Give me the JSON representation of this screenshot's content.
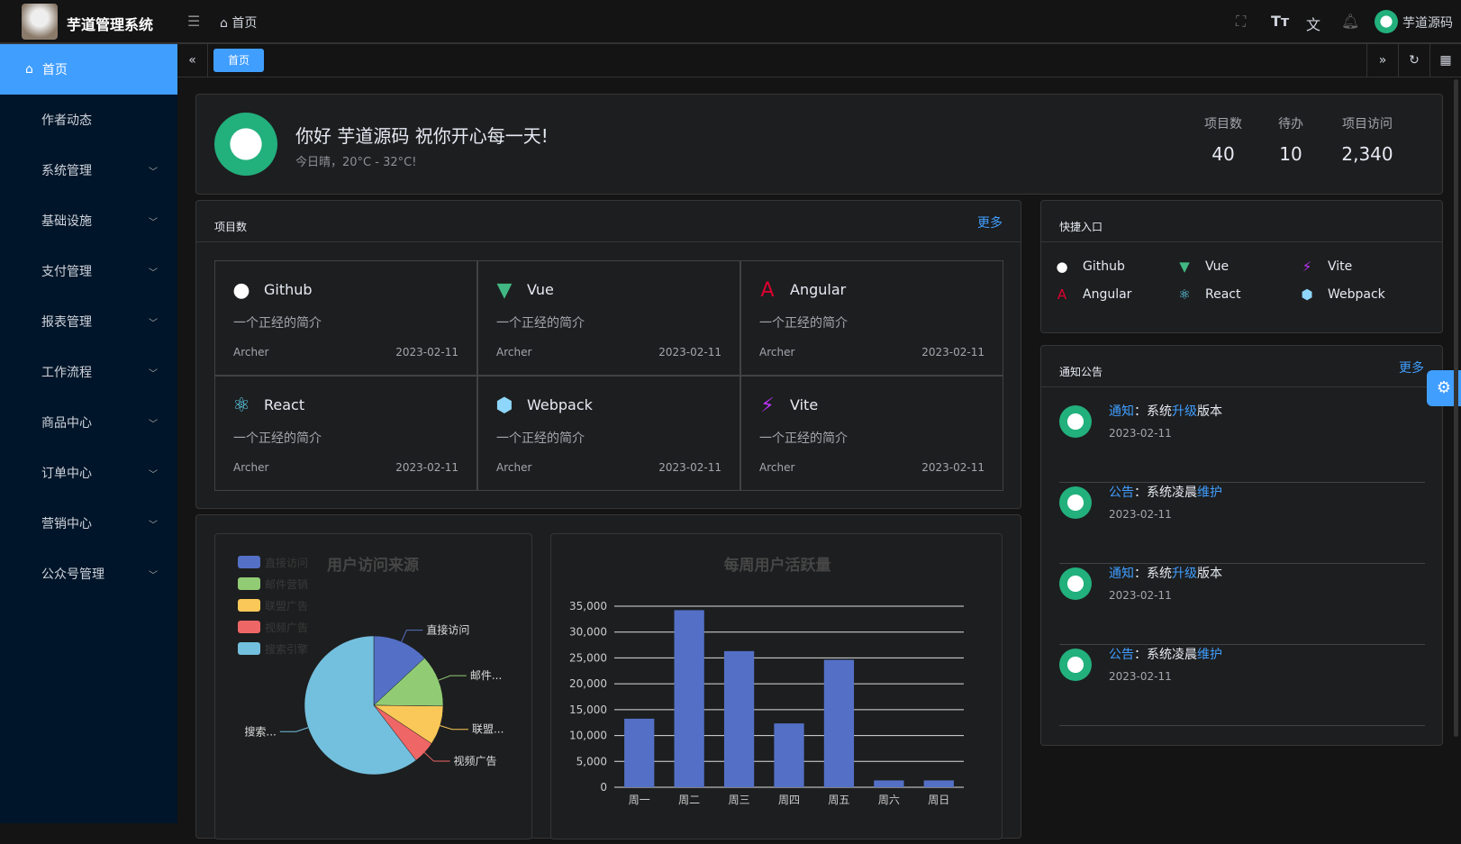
{
  "header": {
    "title": "芋道管理系统",
    "breadcrumb": "首页",
    "user": "芋道源码"
  },
  "tabs": [
    {
      "label": "首页"
    }
  ],
  "sidebar": {
    "items": [
      {
        "label": "首页",
        "icon": "home-icon"
      },
      {
        "label": "作者动态"
      },
      {
        "label": "系统管理"
      },
      {
        "label": "基础设施"
      },
      {
        "label": "支付管理"
      },
      {
        "label": "报表管理"
      },
      {
        "label": "工作流程"
      },
      {
        "label": "商品中心"
      },
      {
        "label": "订单中心"
      },
      {
        "label": "营销中心"
      },
      {
        "label": "公众号管理"
      }
    ]
  },
  "welcome": {
    "greeting": "你好 芋道源码 祝你开心每一天!",
    "weather": "今日晴，20°C - 32°C!",
    "stats": [
      {
        "label": "项目数",
        "value": "40"
      },
      {
        "label": "待办",
        "value": "10"
      },
      {
        "label": "项目访问",
        "value": "2,340"
      }
    ]
  },
  "projects": {
    "title": "项目数",
    "more": "更多",
    "items": [
      {
        "name": "Github",
        "icon": "github-icon",
        "color": "#ffffff",
        "desc": "一个正经的简介",
        "author": "Archer",
        "date": "2023-02-11"
      },
      {
        "name": "Vue",
        "icon": "vue-icon",
        "color": "#41b883",
        "desc": "一个正经的简介",
        "author": "Archer",
        "date": "2023-02-11"
      },
      {
        "name": "Angular",
        "icon": "angular-icon",
        "color": "#dd0031",
        "desc": "一个正经的简介",
        "author": "Archer",
        "date": "2023-02-11"
      },
      {
        "name": "React",
        "icon": "react-icon",
        "color": "#61dafb",
        "desc": "一个正经的简介",
        "author": "Archer",
        "date": "2023-02-11"
      },
      {
        "name": "Webpack",
        "icon": "webpack-icon",
        "color": "#8ed6fb",
        "desc": "一个正经的简介",
        "author": "Archer",
        "date": "2023-02-11"
      },
      {
        "name": "Vite",
        "icon": "vite-icon",
        "color": "#bd34fe",
        "desc": "一个正经的简介",
        "author": "Archer",
        "date": "2023-02-11"
      }
    ]
  },
  "quick": {
    "title": "快捷入口",
    "items": [
      {
        "name": "Github",
        "icon": "github-icon",
        "color": "#ffffff"
      },
      {
        "name": "Vue",
        "icon": "vue-icon",
        "color": "#41b883"
      },
      {
        "name": "Vite",
        "icon": "vite-icon",
        "color": "#bd34fe"
      },
      {
        "name": "Angular",
        "icon": "angular-icon",
        "color": "#dd0031"
      },
      {
        "name": "React",
        "icon": "react-icon",
        "color": "#61dafb"
      },
      {
        "name": "Webpack",
        "icon": "webpack-icon",
        "color": "#8ed6fb"
      }
    ]
  },
  "notices": {
    "title": "通知公告",
    "more": "更多",
    "items": [
      {
        "type": "通知",
        "pre": "：系统",
        "hl": "升级",
        "post": "版本",
        "date": "2023-02-11"
      },
      {
        "type": "公告",
        "pre": "：系统凌晨",
        "hl": "维护",
        "post": "",
        "date": "2023-02-11"
      },
      {
        "type": "通知",
        "pre": "：系统",
        "hl": "升级",
        "post": "版本",
        "date": "2023-02-11"
      },
      {
        "type": "公告",
        "pre": "：系统凌晨",
        "hl": "维护",
        "post": "",
        "date": "2023-02-11"
      }
    ]
  },
  "chart_data": [
    {
      "type": "pie",
      "title": "用户访问来源",
      "legend_position": "top-left",
      "categories": [
        "直接访问",
        "邮件营销",
        "联盟广告",
        "视频广告",
        "搜索引擎"
      ],
      "values": [
        335,
        310,
        234,
        135,
        1548
      ],
      "colors": [
        "#5470c6",
        "#91cc75",
        "#fac858",
        "#ee6666",
        "#73c0de"
      ],
      "labels": [
        "直接访问",
        "邮件...",
        "联盟...",
        "视频广告",
        "搜索..."
      ]
    },
    {
      "type": "bar",
      "title": "每周用户活跃量",
      "categories": [
        "周一",
        "周二",
        "周三",
        "周四",
        "周五",
        "周六",
        "周日"
      ],
      "values": [
        13253,
        34235,
        26321,
        12340,
        24643,
        1322,
        1324
      ],
      "ylim": [
        0,
        35000
      ],
      "yticks": [
        "0",
        "5,000",
        "10,000",
        "15,000",
        "20,000",
        "25,000",
        "30,000",
        "35,000"
      ],
      "color": "#5470c6",
      "grid": true
    }
  ]
}
